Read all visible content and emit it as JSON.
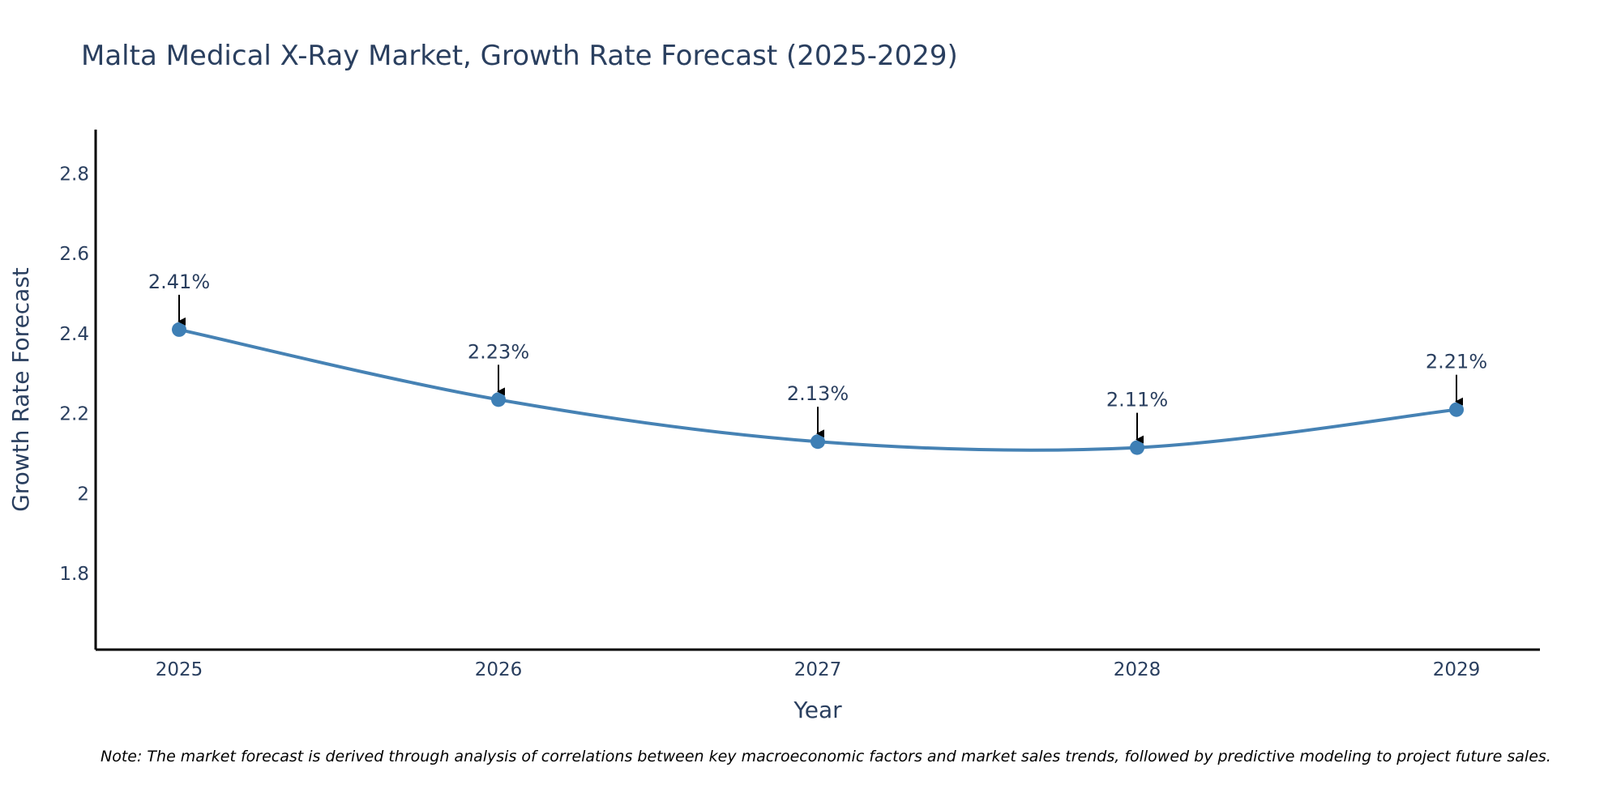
{
  "chart_data": {
    "type": "line",
    "title": "Malta Medical X-Ray Market, Growth Rate Forecast (2025-2029)",
    "xlabel": "Year",
    "ylabel": "Growth Rate Forecast",
    "categories": [
      "2025",
      "2026",
      "2027",
      "2028",
      "2029"
    ],
    "values": [
      2.41,
      2.235,
      2.13,
      2.115,
      2.21
    ],
    "data_labels": [
      "2.41%",
      "2.23%",
      "2.13%",
      "2.11%",
      "2.21%"
    ],
    "yticks": [
      1.8,
      2,
      2.2,
      2.4,
      2.6,
      2.8
    ],
    "ytick_labels": [
      "1.8",
      "2",
      "2.2",
      "2.4",
      "2.6",
      "2.8"
    ],
    "ylim": [
      1.61,
      2.91
    ],
    "line_shape": "spline",
    "grid": false,
    "note": "Note: The market forecast is derived through analysis of correlations between key macroeconomic factors and market sales trends, followed by predictive modeling to project future sales.",
    "colors": {
      "line": "#4682b4",
      "marker": "#3e7fb5",
      "arrow": "#000000",
      "axis": "#000000",
      "text": "#2a3f5f"
    }
  }
}
